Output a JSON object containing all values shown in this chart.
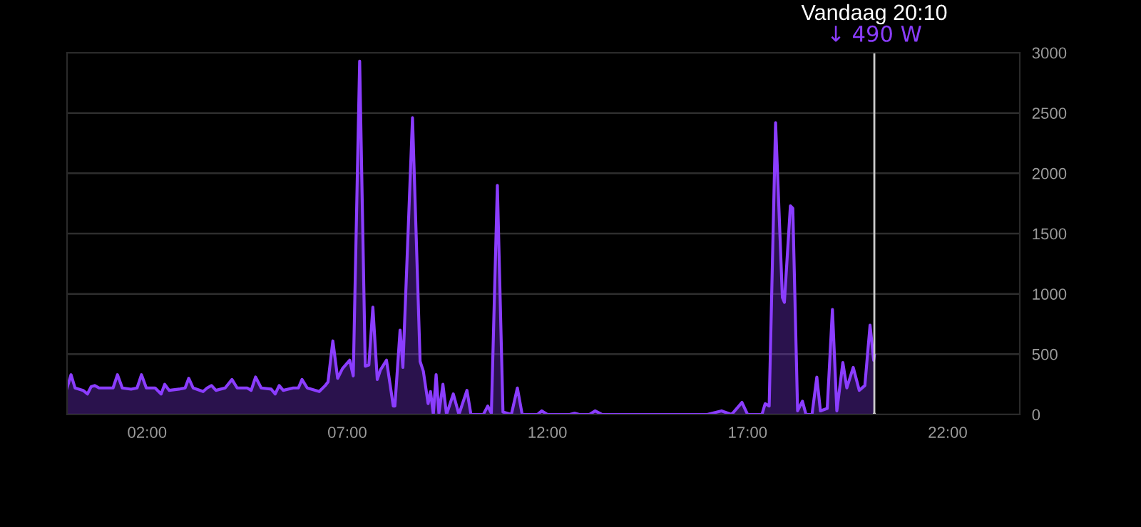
{
  "chart_data": {
    "type": "area",
    "x": [
      0.0,
      0.1,
      0.2,
      0.4,
      0.51,
      0.6,
      0.69,
      0.8,
      1.0,
      1.15,
      1.26,
      1.38,
      1.6,
      1.75,
      1.86,
      1.98,
      2.2,
      2.35,
      2.44,
      2.55,
      2.8,
      2.95,
      3.04,
      3.15,
      3.4,
      3.5,
      3.61,
      3.72,
      3.95,
      4.12,
      4.25,
      4.5,
      4.6,
      4.71,
      4.85,
      5.1,
      5.2,
      5.3,
      5.4,
      5.65,
      5.78,
      5.87,
      6.0,
      6.3,
      6.45,
      6.52,
      6.64,
      6.76,
      6.88,
      7.06,
      7.15,
      7.31,
      7.45,
      7.54,
      7.64,
      7.75,
      7.83,
      7.98,
      8.15,
      8.19,
      8.32,
      8.39,
      8.63,
      8.82,
      8.9,
      9.02,
      9.08,
      9.15,
      9.22,
      9.29,
      9.39,
      9.48,
      9.65,
      9.79,
      9.99,
      10.09,
      10.4,
      10.51,
      10.6,
      10.75,
      10.89,
      11.1,
      11.25,
      11.37,
      11.75,
      11.86,
      12.0,
      12.55,
      12.68,
      12.8,
      13.05,
      13.19,
      13.37,
      15.99,
      16.35,
      16.6,
      16.86,
      17.0,
      17.36,
      17.44,
      17.54,
      17.7,
      17.87,
      17.92,
      18.07,
      18.13,
      18.25,
      18.37,
      18.46,
      18.61,
      18.73,
      18.82,
      18.99,
      19.12,
      19.23,
      19.38,
      19.48,
      19.64,
      19.79,
      19.93,
      20.06,
      20.15,
      20.1667
    ],
    "series": [
      {
        "color": "#8b3dff",
        "values": [
          220,
          330,
          220,
          200,
          170,
          230,
          240,
          220,
          220,
          220,
          330,
          220,
          210,
          220,
          330,
          220,
          220,
          170,
          250,
          200,
          210,
          220,
          300,
          220,
          190,
          220,
          240,
          200,
          220,
          290,
          220,
          220,
          200,
          310,
          220,
          210,
          170,
          240,
          200,
          220,
          220,
          290,
          220,
          190,
          240,
          270,
          610,
          300,
          380,
          450,
          320,
          2930,
          400,
          410,
          890,
          290,
          370,
          450,
          70,
          70,
          700,
          390,
          2460,
          440,
          360,
          90,
          190,
          0,
          330,
          10,
          250,
          0,
          170,
          0,
          200,
          0,
          0,
          70,
          10,
          1900,
          20,
          0,
          220,
          0,
          0,
          30,
          0,
          0,
          10,
          0,
          0,
          30,
          0,
          0,
          30,
          0,
          100,
          0,
          0,
          90,
          70,
          2420,
          970,
          930,
          1730,
          1710,
          30,
          110,
          0,
          0,
          310,
          30,
          50,
          870,
          30,
          430,
          220,
          390,
          200,
          240,
          740,
          450,
          490
        ]
      }
    ],
    "xlim": [
      0,
      23.8
    ],
    "ylim": [
      0,
      3000
    ],
    "xticks": [
      {
        "value": 2,
        "label": "02:00"
      },
      {
        "value": 7,
        "label": "07:00"
      },
      {
        "value": 12,
        "label": "12:00"
      },
      {
        "value": 17,
        "label": "17:00"
      },
      {
        "value": 22,
        "label": "22:00"
      }
    ],
    "yticks": [
      0,
      500,
      1000,
      1500,
      2000,
      2500,
      3000
    ],
    "grid": "y",
    "ref_lines": [
      {
        "axis": "x",
        "value": 20.1667,
        "label": "Vandaag 20:10",
        "color": "#cccccc"
      }
    ],
    "annotations": [
      "↓ 490 W"
    ]
  }
}
